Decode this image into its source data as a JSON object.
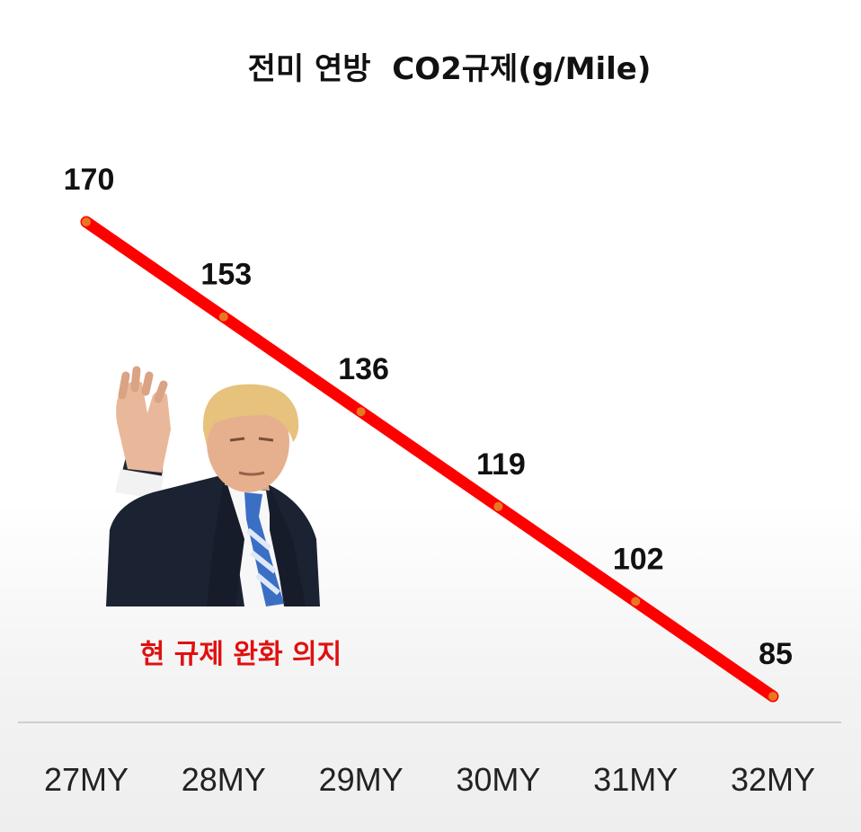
{
  "chart_data": {
    "type": "line",
    "title": "전미 연방  CO2규제(g/Mile)",
    "categories": [
      "27MY",
      "28MY",
      "29MY",
      "30MY",
      "31MY",
      "32MY"
    ],
    "series": [
      {
        "values": [
          170,
          153,
          136,
          119,
          102,
          85
        ]
      }
    ],
    "data_labels": [
      "170",
      "153",
      "136",
      "119",
      "102",
      "85"
    ],
    "line_color": "#ff0000",
    "marker_color": "#e87722",
    "grid": false,
    "legend": "none"
  },
  "annotation": {
    "caption": "현 규제 완화 의지",
    "caption_color": "#e01010",
    "photo": "man-in-suit-waving-photo"
  }
}
